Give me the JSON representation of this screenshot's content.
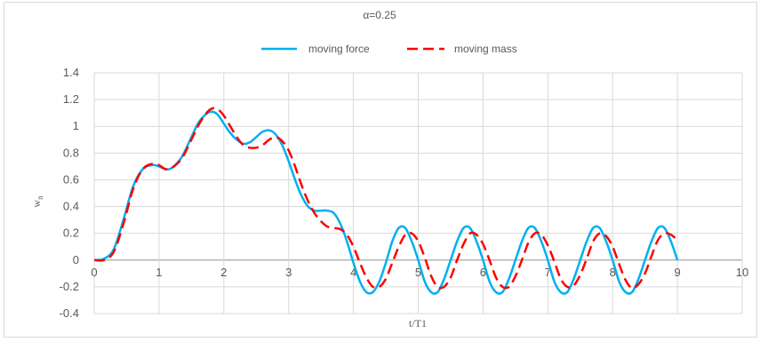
{
  "chart_data": {
    "type": "line",
    "title": "α=0.25",
    "xlabel": "t/T1",
    "ylabel_main": "w",
    "ylabel_sub": "n",
    "xlim": [
      0,
      10
    ],
    "ylim": [
      -0.4,
      1.4
    ],
    "x_ticks": [
      "0",
      "1",
      "2",
      "3",
      "4",
      "5",
      "6",
      "7",
      "8",
      "9",
      "10"
    ],
    "y_ticks": [
      "1.4",
      "1.2",
      "1",
      "0.8",
      "0.6",
      "0.4",
      "0.2",
      "0",
      "-0.2",
      "-0.4"
    ],
    "grid": true,
    "legend_position": "top",
    "series": [
      {
        "name": "moving force",
        "color": "#00b0f0",
        "style": "solid",
        "points": [
          [
            0,
            0
          ],
          [
            0.15,
            0.01
          ],
          [
            0.3,
            0.08
          ],
          [
            0.45,
            0.3
          ],
          [
            0.6,
            0.55
          ],
          [
            0.75,
            0.68
          ],
          [
            0.9,
            0.71
          ],
          [
            1.0,
            0.7
          ],
          [
            1.1,
            0.68
          ],
          [
            1.2,
            0.69
          ],
          [
            1.35,
            0.77
          ],
          [
            1.5,
            0.92
          ],
          [
            1.6,
            1.02
          ],
          [
            1.7,
            1.08
          ],
          [
            1.8,
            1.11
          ],
          [
            1.9,
            1.09
          ],
          [
            2.0,
            1.02
          ],
          [
            2.1,
            0.95
          ],
          [
            2.2,
            0.9
          ],
          [
            2.3,
            0.87
          ],
          [
            2.4,
            0.88
          ],
          [
            2.5,
            0.92
          ],
          [
            2.6,
            0.96
          ],
          [
            2.7,
            0.97
          ],
          [
            2.8,
            0.94
          ],
          [
            2.9,
            0.86
          ],
          [
            3.0,
            0.74
          ],
          [
            3.1,
            0.6
          ],
          [
            3.2,
            0.48
          ],
          [
            3.3,
            0.4
          ],
          [
            3.4,
            0.37
          ],
          [
            3.5,
            0.37
          ],
          [
            3.6,
            0.37
          ],
          [
            3.7,
            0.35
          ],
          [
            3.8,
            0.27
          ],
          [
            3.9,
            0.14
          ],
          [
            4.0,
            -0.02
          ],
          [
            4.1,
            -0.16
          ],
          [
            4.2,
            -0.24
          ],
          [
            4.3,
            -0.24
          ],
          [
            4.4,
            -0.16
          ],
          [
            4.5,
            -0.02
          ],
          [
            4.6,
            0.14
          ],
          [
            4.7,
            0.24
          ],
          [
            4.8,
            0.24
          ],
          [
            4.9,
            0.14
          ],
          [
            5.0,
            0.0
          ],
          [
            5.1,
            -0.16
          ],
          [
            5.2,
            -0.24
          ],
          [
            5.3,
            -0.24
          ],
          [
            5.4,
            -0.14
          ],
          [
            5.5,
            0.0
          ],
          [
            5.6,
            0.14
          ],
          [
            5.7,
            0.24
          ],
          [
            5.8,
            0.24
          ],
          [
            5.9,
            0.14
          ],
          [
            6.0,
            0.0
          ],
          [
            6.1,
            -0.16
          ],
          [
            6.2,
            -0.24
          ],
          [
            6.3,
            -0.24
          ],
          [
            6.4,
            -0.14
          ],
          [
            6.5,
            0.0
          ],
          [
            6.6,
            0.14
          ],
          [
            6.7,
            0.24
          ],
          [
            6.8,
            0.24
          ],
          [
            6.9,
            0.14
          ],
          [
            7.0,
            0.0
          ],
          [
            7.1,
            -0.16
          ],
          [
            7.2,
            -0.24
          ],
          [
            7.3,
            -0.24
          ],
          [
            7.4,
            -0.14
          ],
          [
            7.5,
            0.0
          ],
          [
            7.6,
            0.14
          ],
          [
            7.7,
            0.24
          ],
          [
            7.8,
            0.24
          ],
          [
            7.9,
            0.14
          ],
          [
            8.0,
            0.0
          ],
          [
            8.1,
            -0.16
          ],
          [
            8.2,
            -0.24
          ],
          [
            8.3,
            -0.24
          ],
          [
            8.4,
            -0.14
          ],
          [
            8.5,
            0.0
          ],
          [
            8.6,
            0.14
          ],
          [
            8.7,
            0.24
          ],
          [
            8.8,
            0.24
          ],
          [
            8.9,
            0.14
          ],
          [
            9.0,
            0.0
          ]
        ]
      },
      {
        "name": "moving mass",
        "color": "#ff0000",
        "style": "dashed",
        "points": [
          [
            0,
            0
          ],
          [
            0.15,
            0.0
          ],
          [
            0.3,
            0.06
          ],
          [
            0.45,
            0.27
          ],
          [
            0.6,
            0.53
          ],
          [
            0.75,
            0.68
          ],
          [
            0.9,
            0.72
          ],
          [
            1.0,
            0.71
          ],
          [
            1.1,
            0.68
          ],
          [
            1.2,
            0.69
          ],
          [
            1.35,
            0.76
          ],
          [
            1.5,
            0.9
          ],
          [
            1.6,
            1.0
          ],
          [
            1.7,
            1.08
          ],
          [
            1.8,
            1.13
          ],
          [
            1.9,
            1.13
          ],
          [
            2.0,
            1.08
          ],
          [
            2.1,
            1.0
          ],
          [
            2.2,
            0.92
          ],
          [
            2.3,
            0.86
          ],
          [
            2.4,
            0.84
          ],
          [
            2.5,
            0.84
          ],
          [
            2.6,
            0.86
          ],
          [
            2.7,
            0.9
          ],
          [
            2.8,
            0.92
          ],
          [
            2.9,
            0.89
          ],
          [
            3.0,
            0.82
          ],
          [
            3.1,
            0.7
          ],
          [
            3.2,
            0.56
          ],
          [
            3.3,
            0.44
          ],
          [
            3.4,
            0.35
          ],
          [
            3.5,
            0.29
          ],
          [
            3.6,
            0.25
          ],
          [
            3.7,
            0.24
          ],
          [
            3.8,
            0.23
          ],
          [
            3.9,
            0.19
          ],
          [
            4.0,
            0.1
          ],
          [
            4.1,
            -0.02
          ],
          [
            4.2,
            -0.13
          ],
          [
            4.3,
            -0.2
          ],
          [
            4.4,
            -0.2
          ],
          [
            4.5,
            -0.14
          ],
          [
            4.6,
            -0.02
          ],
          [
            4.7,
            0.1
          ],
          [
            4.8,
            0.19
          ],
          [
            4.9,
            0.2
          ],
          [
            5.0,
            0.14
          ],
          [
            5.1,
            0.02
          ],
          [
            5.2,
            -0.12
          ],
          [
            5.3,
            -0.2
          ],
          [
            5.4,
            -0.2
          ],
          [
            5.5,
            -0.13
          ],
          [
            5.6,
            0.0
          ],
          [
            5.7,
            0.12
          ],
          [
            5.8,
            0.2
          ],
          [
            5.9,
            0.19
          ],
          [
            6.0,
            0.12
          ],
          [
            6.1,
            0.0
          ],
          [
            6.2,
            -0.13
          ],
          [
            6.3,
            -0.2
          ],
          [
            6.4,
            -0.2
          ],
          [
            6.5,
            -0.12
          ],
          [
            6.6,
            0.0
          ],
          [
            6.7,
            0.13
          ],
          [
            6.8,
            0.2
          ],
          [
            6.9,
            0.19
          ],
          [
            7.0,
            0.11
          ],
          [
            7.1,
            -0.01
          ],
          [
            7.2,
            -0.14
          ],
          [
            7.3,
            -0.2
          ],
          [
            7.4,
            -0.19
          ],
          [
            7.5,
            -0.11
          ],
          [
            7.6,
            0.01
          ],
          [
            7.7,
            0.14
          ],
          [
            7.8,
            0.2
          ],
          [
            7.9,
            0.18
          ],
          [
            8.0,
            0.1
          ],
          [
            8.1,
            -0.03
          ],
          [
            8.2,
            -0.15
          ],
          [
            8.3,
            -0.21
          ],
          [
            8.4,
            -0.18
          ],
          [
            8.5,
            -0.1
          ],
          [
            8.6,
            0.03
          ],
          [
            8.7,
            0.15
          ],
          [
            8.8,
            0.2
          ],
          [
            8.9,
            0.19
          ],
          [
            9.0,
            0.15
          ]
        ]
      }
    ]
  }
}
